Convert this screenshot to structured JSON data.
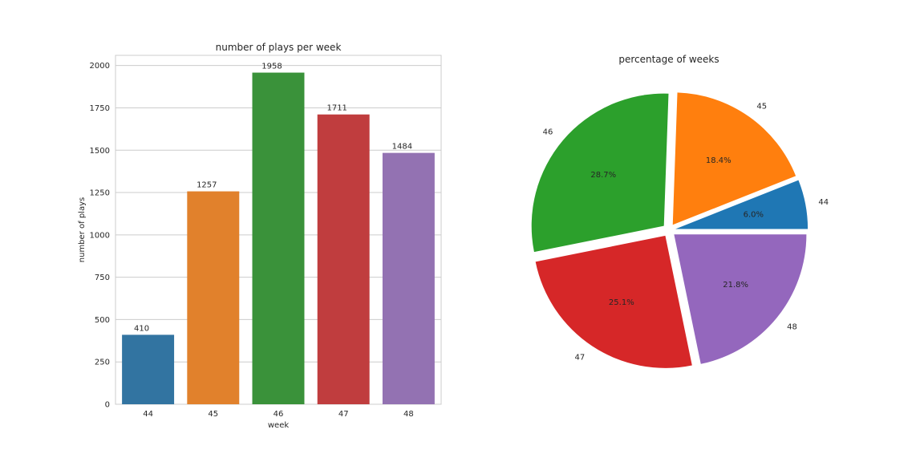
{
  "chart_data": [
    {
      "type": "bar",
      "title": "number of plays per week",
      "xlabel": "week",
      "ylabel": "number of plays",
      "categories": [
        "44",
        "45",
        "46",
        "47",
        "48"
      ],
      "values": [
        410,
        1257,
        1958,
        1711,
        1484
      ],
      "data_labels": [
        "410",
        "1257",
        "1958",
        "1711",
        "1484"
      ],
      "ylim": [
        0,
        2060
      ],
      "yticks": [
        0,
        250,
        500,
        750,
        1000,
        1250,
        1500,
        1750,
        2000
      ],
      "grid": true,
      "colors": [
        "#3274a1",
        "#e1812c",
        "#3a923a",
        "#c03d3e",
        "#9372b2"
      ]
    },
    {
      "type": "pie",
      "title": "percentage of weeks",
      "labels": [
        "44",
        "45",
        "46",
        "47",
        "48"
      ],
      "values": [
        410,
        1257,
        1958,
        1711,
        1484
      ],
      "percent_labels": [
        "6.0%",
        "18.4%",
        "28.7%",
        "25.1%",
        "21.8%"
      ],
      "colors": [
        "#1f77b4",
        "#ff7f0e",
        "#2ca02c",
        "#d62728",
        "#9467bd"
      ],
      "exploded": true
    }
  ]
}
